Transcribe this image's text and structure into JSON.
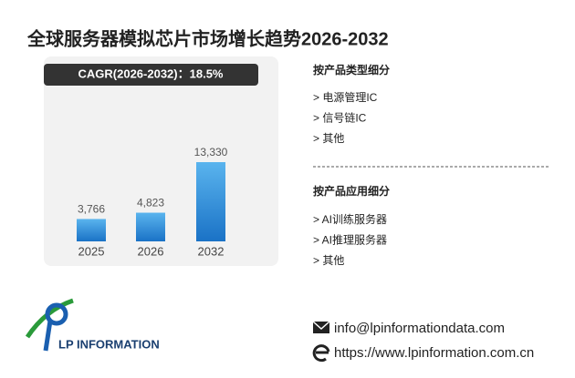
{
  "chart_data": {
    "type": "bar",
    "title": "全球服务器模拟芯片市场增长趋势2026-2032",
    "annotation": "CAGR(2026-2032)：18.5%",
    "categories": [
      "2025",
      "2026",
      "2032"
    ],
    "values": [
      3766,
      4823,
      13330
    ],
    "value_labels": [
      "3,766",
      "4,823",
      "13,330"
    ],
    "color": "#2a8ad8"
  },
  "product_types": {
    "heading": "按产品类型细分",
    "items": [
      "> 电源管理IC",
      "> 信号链IC",
      "> 其他"
    ]
  },
  "applications": {
    "heading": "按产品应用细分",
    "items": [
      "> AI训练服务器",
      "> AI推理服务器",
      "> 其他"
    ]
  },
  "contact": {
    "email": "info@lpinformationdata.com",
    "website": "https://www.lpinformation.com.cn"
  },
  "logo": "LP INFORMATION"
}
